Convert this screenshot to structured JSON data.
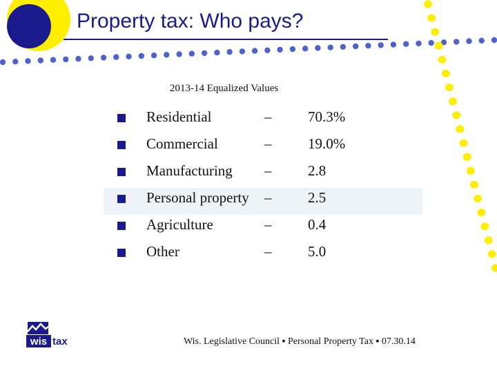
{
  "title": "Property tax:  Who pays?",
  "subtitle": "2013-14 Equalized Values",
  "items": [
    {
      "label": "Residential",
      "dash": "–",
      "value": "70.3%"
    },
    {
      "label": "Commercial",
      "dash": "–",
      "value": "19.0%"
    },
    {
      "label": "Manufacturing",
      "dash": "–",
      "value": " 2.8"
    },
    {
      "label": "Personal property",
      "dash": "–",
      "value": " 2.5"
    },
    {
      "label": "Agriculture",
      "dash": "–",
      "value": " 0.4"
    },
    {
      "label": "Other",
      "dash": "–",
      "value": " 5.0"
    }
  ],
  "highlighted_item_index": 3,
  "logo": {
    "text_left": "wis",
    "text_right": "tax"
  },
  "footer": "Wis. Legislative Council  ▪  Personal Property Tax ▪ 07.30.14",
  "colors": {
    "accent_blue": "#1a1a8c",
    "accent_yellow": "#ffee00",
    "dot_blue": "#4d63c9",
    "highlight": "#edf3f9"
  }
}
